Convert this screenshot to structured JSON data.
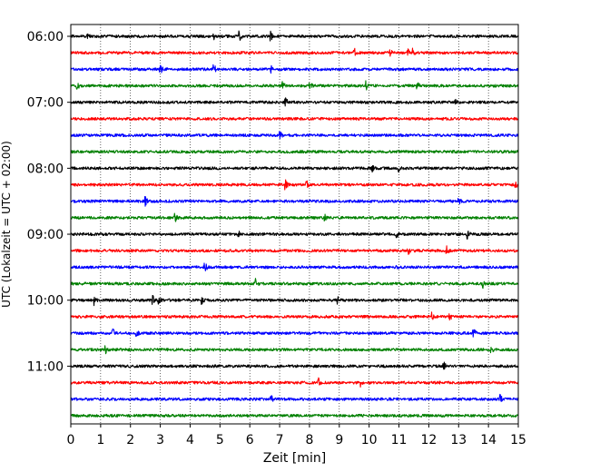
{
  "chart_data": {
    "type": "line",
    "title": "",
    "xlabel": "Zeit  [min]",
    "ylabel": "UTC (Lokalzeit = UTC + 02:00)",
    "xlim": [
      0,
      15
    ],
    "x_ticks": [
      "0",
      "1",
      "2",
      "3",
      "4",
      "5",
      "6",
      "7",
      "8",
      "9",
      "10",
      "11",
      "12",
      "13",
      "14",
      "15"
    ],
    "y_ticks": [
      "06:00",
      "07:00",
      "08:00",
      "09:00",
      "10:00",
      "11:00"
    ],
    "grid": "vertical dotted lines at each minute",
    "line_interval_minutes": 15,
    "trace_color_cycle": [
      "#000000",
      "#ff0000",
      "#0000ff",
      "#008000"
    ],
    "traces": [
      {
        "start": "06:00",
        "color": "#000000",
        "events_min": [
          0.55,
          4.8,
          5.65,
          6.7
        ]
      },
      {
        "start": "06:15",
        "color": "#ff0000",
        "events_min": [
          9.5,
          10.7,
          11.3,
          11.45
        ]
      },
      {
        "start": "06:30",
        "color": "#0000ff",
        "events_min": [
          3.0,
          4.8,
          6.7
        ]
      },
      {
        "start": "06:45",
        "color": "#008000",
        "events_min": [
          0.2,
          7.1,
          8.0,
          9.9,
          11.6
        ]
      },
      {
        "start": "07:00",
        "color": "#000000",
        "events_min": [
          7.2,
          12.9
        ]
      },
      {
        "start": "07:15",
        "color": "#ff0000",
        "events_min": []
      },
      {
        "start": "07:30",
        "color": "#0000ff",
        "events_min": [
          7.0
        ]
      },
      {
        "start": "07:45",
        "color": "#008000",
        "events_min": []
      },
      {
        "start": "08:00",
        "color": "#000000",
        "events_min": [
          10.1,
          11.0
        ]
      },
      {
        "start": "08:15",
        "color": "#ff0000",
        "events_min": [
          7.2,
          7.9,
          14.9
        ]
      },
      {
        "start": "08:30",
        "color": "#0000ff",
        "events_min": [
          2.5,
          13.0
        ]
      },
      {
        "start": "08:45",
        "color": "#008000",
        "events_min": [
          3.5,
          8.5
        ]
      },
      {
        "start": "09:00",
        "color": "#000000",
        "events_min": [
          5.6,
          10.9,
          13.3
        ]
      },
      {
        "start": "09:15",
        "color": "#ff0000",
        "events_min": [
          11.3,
          12.6
        ]
      },
      {
        "start": "09:30",
        "color": "#0000ff",
        "events_min": [
          4.5,
          10.9
        ]
      },
      {
        "start": "09:45",
        "color": "#008000",
        "events_min": [
          6.2,
          13.8
        ]
      },
      {
        "start": "10:00",
        "color": "#000000",
        "events_min": [
          0.8,
          2.75,
          2.95,
          4.4,
          8.95
        ]
      },
      {
        "start": "10:15",
        "color": "#ff0000",
        "events_min": [
          12.1,
          12.7
        ]
      },
      {
        "start": "10:30",
        "color": "#0000ff",
        "events_min": [
          1.4,
          2.2,
          13.5
        ]
      },
      {
        "start": "10:45",
        "color": "#008000",
        "events_min": [
          1.15,
          14.1
        ]
      },
      {
        "start": "11:00",
        "color": "#000000",
        "events_min": [
          12.5
        ]
      },
      {
        "start": "11:15",
        "color": "#ff0000",
        "events_min": [
          8.3,
          9.7
        ]
      },
      {
        "start": "11:30",
        "color": "#0000ff",
        "events_min": [
          6.7,
          14.4
        ]
      },
      {
        "start": "11:45",
        "color": "#008000",
        "events_min": []
      }
    ]
  }
}
